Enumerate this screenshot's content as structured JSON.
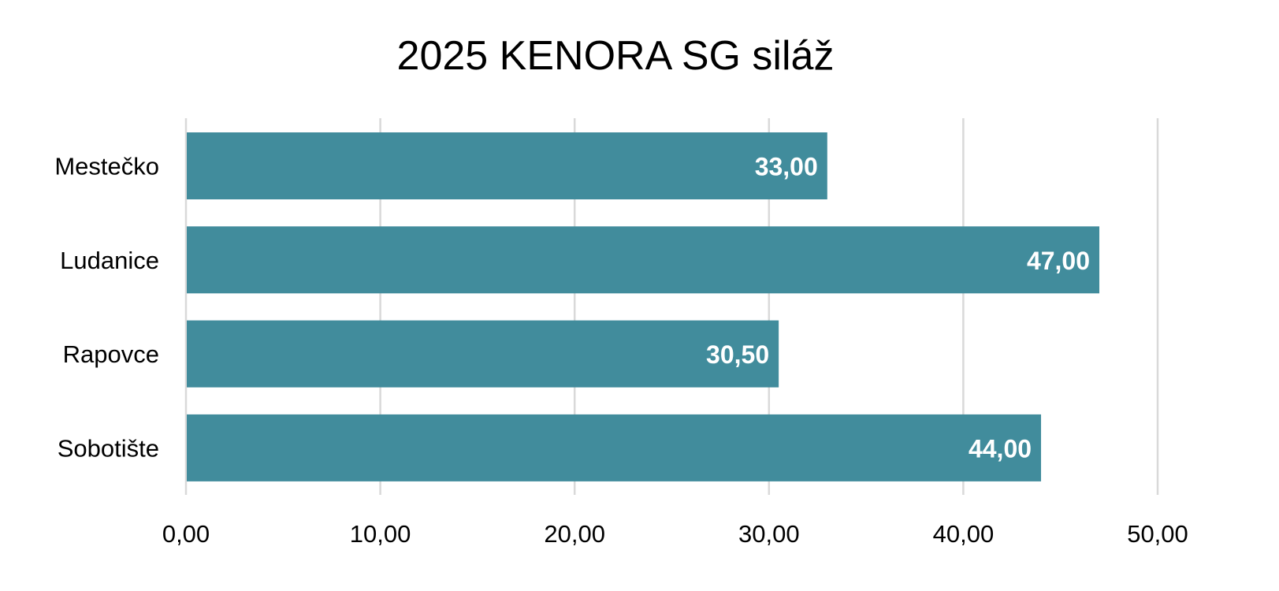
{
  "chart_data": {
    "type": "bar",
    "orientation": "horizontal",
    "title": "2025 KENORA SG siláž",
    "categories": [
      "Mestečko",
      "Ludanice",
      "Rapovce",
      "Sobotište"
    ],
    "values": [
      33.0,
      47.0,
      30.5,
      44.0
    ],
    "data_labels": [
      "33,00",
      "47,00",
      "30,50",
      "44,00"
    ],
    "xlim": [
      0,
      50
    ],
    "x_ticks": [
      0,
      10,
      20,
      30,
      40,
      50
    ],
    "x_tick_labels": [
      "0,00",
      "10,00",
      "20,00",
      "30,00",
      "40,00",
      "50,00"
    ],
    "xlabel": "",
    "ylabel": "",
    "grid": true,
    "legend": "none",
    "bar_color": "#418C9C",
    "grid_color": "#D9D9D9"
  }
}
